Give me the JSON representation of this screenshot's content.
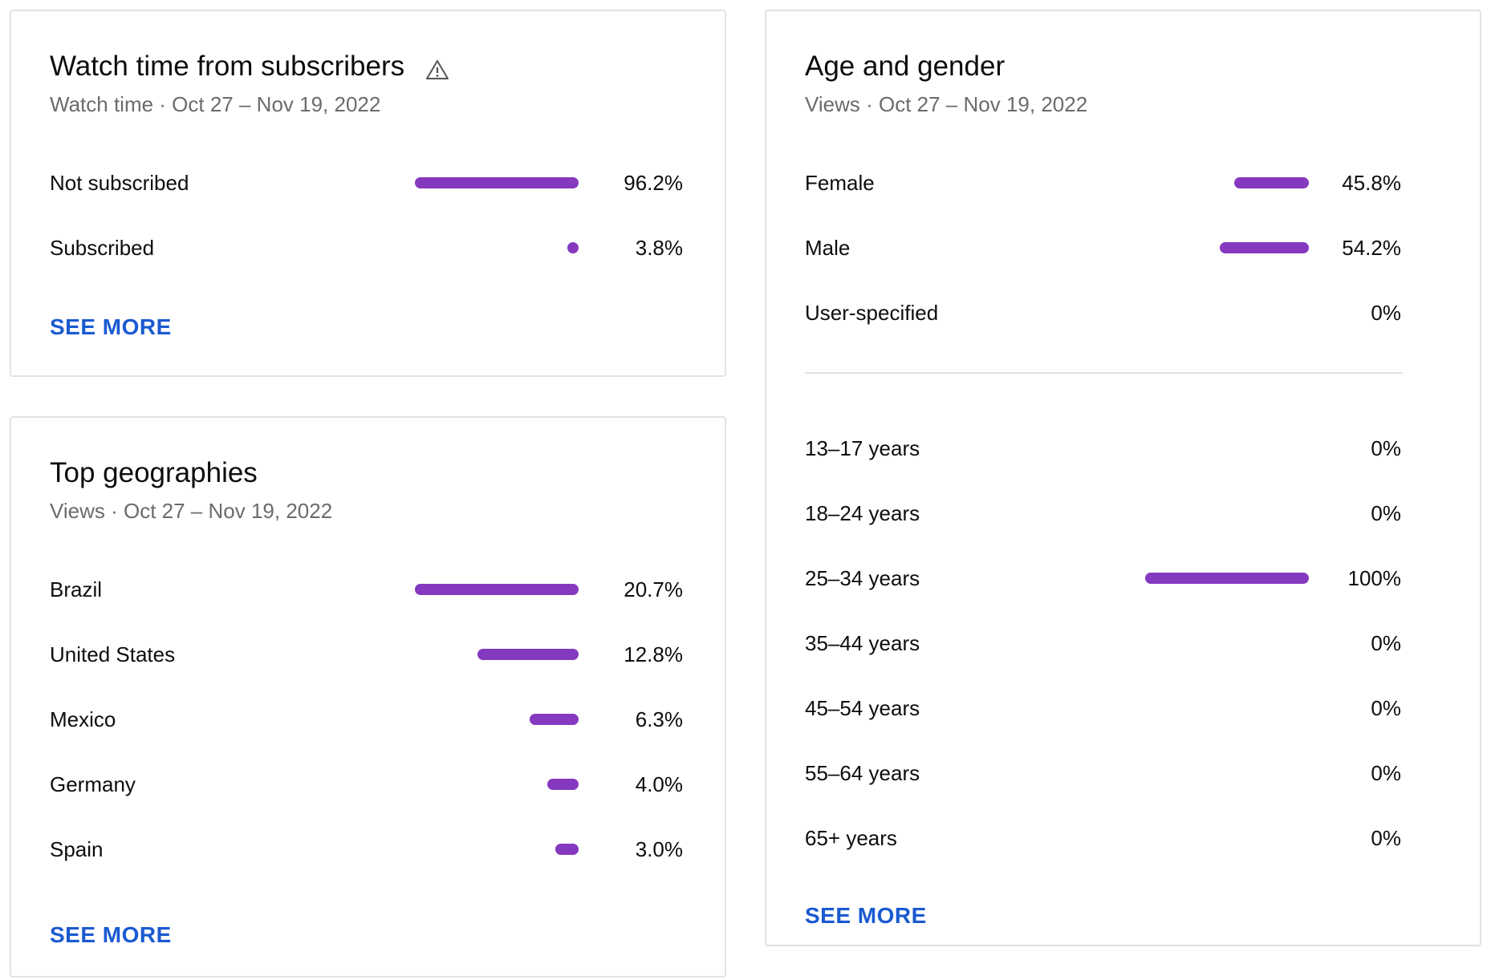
{
  "colors": {
    "bar": "#8539bf",
    "link": "#1a5ad1",
    "subtitle": "#6b6b6b",
    "border": "#e2e2e2"
  },
  "subscribers": {
    "title": "Watch time from subscribers",
    "title_icon": "warning-icon",
    "subtitle": "Watch time · Oct 27 – Nov 19, 2022",
    "rows": [
      {
        "label": "Not subscribed",
        "value": "96.2%",
        "bar_fraction": 1.0
      },
      {
        "label": "Subscribed",
        "value": "3.8%",
        "bar_fraction": 0.04
      }
    ],
    "see_more": "SEE MORE"
  },
  "geographies": {
    "title": "Top geographies",
    "subtitle": "Views · Oct 27 – Nov 19, 2022",
    "rows": [
      {
        "label": "Brazil",
        "value": "20.7%",
        "bar_fraction": 1.0
      },
      {
        "label": "United States",
        "value": "12.8%",
        "bar_fraction": 0.62
      },
      {
        "label": "Mexico",
        "value": "6.3%",
        "bar_fraction": 0.3
      },
      {
        "label": "Germany",
        "value": "4.0%",
        "bar_fraction": 0.19
      },
      {
        "label": "Spain",
        "value": "3.0%",
        "bar_fraction": 0.14
      }
    ],
    "see_more": "SEE MORE"
  },
  "age_gender": {
    "title": "Age and gender",
    "subtitle": "Views · Oct 27 – Nov 19, 2022",
    "gender_rows": [
      {
        "label": "Female",
        "value": "45.8%",
        "bar_fraction": 0.458
      },
      {
        "label": "Male",
        "value": "54.2%",
        "bar_fraction": 0.542
      },
      {
        "label": "User-specified",
        "value": "0%",
        "bar_fraction": 0
      }
    ],
    "age_rows": [
      {
        "label": "13–17 years",
        "value": "0%",
        "bar_fraction": 0
      },
      {
        "label": "18–24 years",
        "value": "0%",
        "bar_fraction": 0
      },
      {
        "label": "25–34 years",
        "value": "100%",
        "bar_fraction": 1.0
      },
      {
        "label": "35–44 years",
        "value": "0%",
        "bar_fraction": 0
      },
      {
        "label": "45–54 years",
        "value": "0%",
        "bar_fraction": 0
      },
      {
        "label": "55–64 years",
        "value": "0%",
        "bar_fraction": 0
      },
      {
        "label": "65+ years",
        "value": "0%",
        "bar_fraction": 0
      }
    ],
    "see_more": "SEE MORE"
  }
}
